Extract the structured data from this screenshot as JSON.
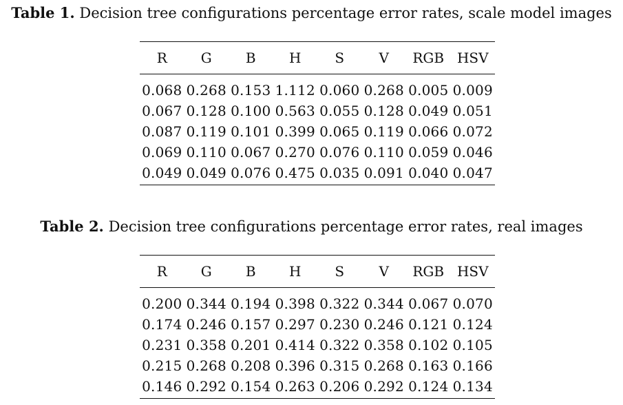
{
  "tables": [
    {
      "label": "Table 1.",
      "caption": "Decision tree configurations percentage error rates, scale model images",
      "headers": [
        "R",
        "G",
        "B",
        "H",
        "S",
        "V",
        "RGB",
        "HSV"
      ],
      "rows": [
        [
          "0.068",
          "0.268",
          "0.153",
          "1.112",
          "0.060",
          "0.268",
          "0.005",
          "0.009"
        ],
        [
          "0.067",
          "0.128",
          "0.100",
          "0.563",
          "0.055",
          "0.128",
          "0.049",
          "0.051"
        ],
        [
          "0.087",
          "0.119",
          "0.101",
          "0.399",
          "0.065",
          "0.119",
          "0.066",
          "0.072"
        ],
        [
          "0.069",
          "0.110",
          "0.067",
          "0.270",
          "0.076",
          "0.110",
          "0.059",
          "0.046"
        ],
        [
          "0.049",
          "0.049",
          "0.076",
          "0.475",
          "0.035",
          "0.091",
          "0.040",
          "0.047"
        ]
      ]
    },
    {
      "label": "Table 2.",
      "caption": "Decision tree configurations percentage error rates, real images",
      "headers": [
        "R",
        "G",
        "B",
        "H",
        "S",
        "V",
        "RGB",
        "HSV"
      ],
      "rows": [
        [
          "0.200",
          "0.344",
          "0.194",
          "0.398",
          "0.322",
          "0.344",
          "0.067",
          "0.070"
        ],
        [
          "0.174",
          "0.246",
          "0.157",
          "0.297",
          "0.230",
          "0.246",
          "0.121",
          "0.124"
        ],
        [
          "0.231",
          "0.358",
          "0.201",
          "0.414",
          "0.322",
          "0.358",
          "0.102",
          "0.105"
        ],
        [
          "0.215",
          "0.268",
          "0.208",
          "0.396",
          "0.315",
          "0.268",
          "0.163",
          "0.166"
        ],
        [
          "0.146",
          "0.292",
          "0.154",
          "0.263",
          "0.206",
          "0.292",
          "0.124",
          "0.134"
        ]
      ]
    }
  ]
}
